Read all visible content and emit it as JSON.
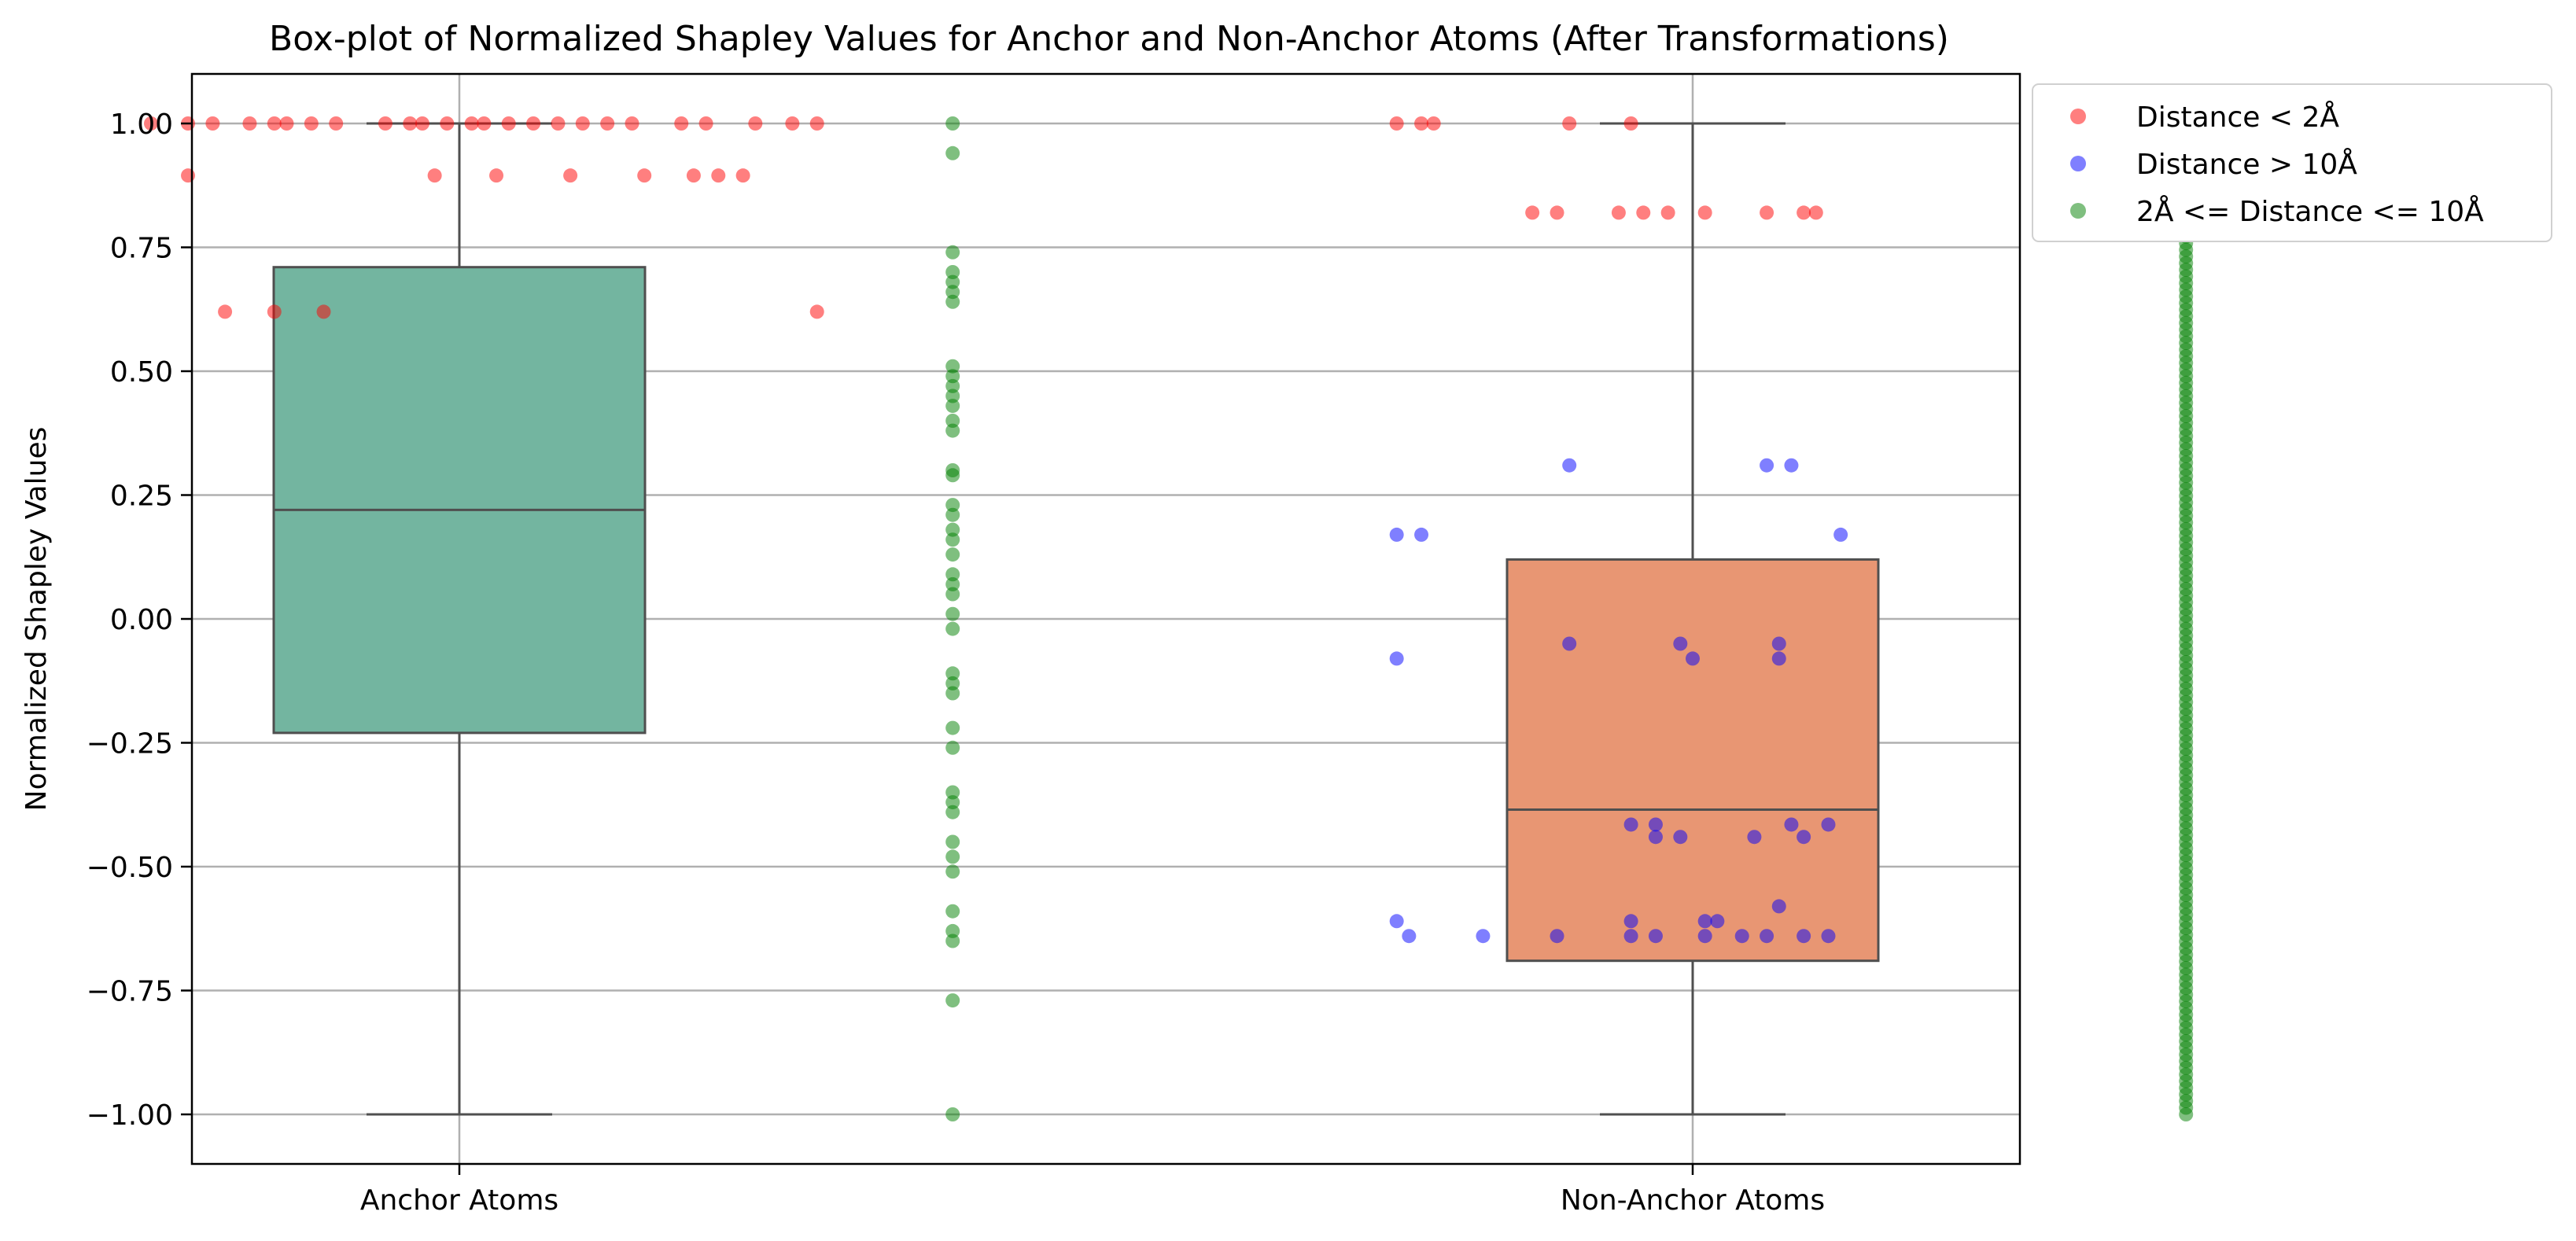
{
  "chart_data": {
    "type": "box",
    "title": "Box-plot of Normalized Shapley Values for Anchor and Non-Anchor Atoms (After Transformations)",
    "xlabel": "",
    "ylabel": "Normalized Shapley Values",
    "ylim": [
      -1.1,
      1.1
    ],
    "yticks": [
      1.0,
      0.75,
      0.5,
      0.25,
      0.0,
      -0.25,
      -0.5,
      -0.75,
      -1.0
    ],
    "ytick_labels": [
      "1.00",
      "0.75",
      "0.50",
      "0.25",
      "0.00",
      "−0.25",
      "−0.50",
      "−0.75",
      "−1.00"
    ],
    "categories": [
      "Anchor Atoms",
      "Non-Anchor Atoms"
    ],
    "grid": true,
    "legend_position": "outside-top-right",
    "boxes": [
      {
        "category": "Anchor Atoms",
        "whislo": -1.0,
        "q1": -0.23,
        "median": 0.22,
        "q3": 0.71,
        "whishi": 1.0,
        "color": "#73b5a0"
      },
      {
        "category": "Non-Anchor Atoms",
        "whislo": -1.0,
        "q1": -0.69,
        "median": -0.385,
        "q3": 0.12,
        "whishi": 1.0,
        "color": "#e89673"
      }
    ],
    "series": [
      {
        "name": "Distance < 2Å",
        "color": "#ff0000",
        "opacity": 0.5,
        "points": [
          {
            "cat": 0,
            "off": -0.25,
            "y": 1.0
          },
          {
            "cat": 0,
            "off": -0.22,
            "y": 1.0
          },
          {
            "cat": 0,
            "off": -0.2,
            "y": 1.0
          },
          {
            "cat": 0,
            "off": -0.17,
            "y": 1.0
          },
          {
            "cat": 0,
            "off": -0.15,
            "y": 1.0
          },
          {
            "cat": 0,
            "off": -0.14,
            "y": 1.0
          },
          {
            "cat": 0,
            "off": -0.12,
            "y": 1.0
          },
          {
            "cat": 0,
            "off": -0.1,
            "y": 1.0
          },
          {
            "cat": 0,
            "off": -0.06,
            "y": 1.0
          },
          {
            "cat": 0,
            "off": -0.04,
            "y": 1.0
          },
          {
            "cat": 0,
            "off": -0.03,
            "y": 1.0
          },
          {
            "cat": 0,
            "off": -0.01,
            "y": 1.0
          },
          {
            "cat": 0,
            "off": 0.01,
            "y": 1.0
          },
          {
            "cat": 0,
            "off": 0.02,
            "y": 1.0
          },
          {
            "cat": 0,
            "off": 0.04,
            "y": 1.0
          },
          {
            "cat": 0,
            "off": 0.06,
            "y": 1.0
          },
          {
            "cat": 0,
            "off": 0.08,
            "y": 1.0
          },
          {
            "cat": 0,
            "off": 0.1,
            "y": 1.0
          },
          {
            "cat": 0,
            "off": 0.12,
            "y": 1.0
          },
          {
            "cat": 0,
            "off": 0.14,
            "y": 1.0
          },
          {
            "cat": 0,
            "off": 0.18,
            "y": 1.0
          },
          {
            "cat": 0,
            "off": 0.2,
            "y": 1.0
          },
          {
            "cat": 0,
            "off": 0.24,
            "y": 1.0
          },
          {
            "cat": 0,
            "off": 0.27,
            "y": 1.0
          },
          {
            "cat": 0,
            "off": 0.29,
            "y": 1.0
          },
          {
            "cat": 0,
            "off": -0.22,
            "y": 0.895
          },
          {
            "cat": 0,
            "off": -0.02,
            "y": 0.895
          },
          {
            "cat": 0,
            "off": 0.03,
            "y": 0.895
          },
          {
            "cat": 0,
            "off": 0.09,
            "y": 0.895
          },
          {
            "cat": 0,
            "off": 0.15,
            "y": 0.895
          },
          {
            "cat": 0,
            "off": 0.19,
            "y": 0.895
          },
          {
            "cat": 0,
            "off": 0.21,
            "y": 0.895
          },
          {
            "cat": 0,
            "off": 0.23,
            "y": 0.895
          },
          {
            "cat": 0,
            "off": -0.19,
            "y": 0.62
          },
          {
            "cat": 0,
            "off": -0.15,
            "y": 0.62
          },
          {
            "cat": 0,
            "off": -0.11,
            "y": 0.62
          },
          {
            "cat": 0,
            "off": 0.29,
            "y": 0.62
          },
          {
            "cat": 1,
            "off": -0.24,
            "y": 1.0
          },
          {
            "cat": 1,
            "off": -0.22,
            "y": 1.0
          },
          {
            "cat": 1,
            "off": -0.21,
            "y": 1.0
          },
          {
            "cat": 1,
            "off": -0.1,
            "y": 1.0
          },
          {
            "cat": 1,
            "off": -0.05,
            "y": 1.0
          },
          {
            "cat": 1,
            "off": -0.13,
            "y": 0.82
          },
          {
            "cat": 1,
            "off": -0.11,
            "y": 0.82
          },
          {
            "cat": 1,
            "off": -0.06,
            "y": 0.82
          },
          {
            "cat": 1,
            "off": -0.04,
            "y": 0.82
          },
          {
            "cat": 1,
            "off": -0.02,
            "y": 0.82
          },
          {
            "cat": 1,
            "off": 0.01,
            "y": 0.82
          },
          {
            "cat": 1,
            "off": 0.06,
            "y": 0.82
          },
          {
            "cat": 1,
            "off": 0.09,
            "y": 0.82
          },
          {
            "cat": 1,
            "off": 0.1,
            "y": 0.82
          }
        ]
      },
      {
        "name": "Distance > 10Å",
        "color": "#0000ff",
        "opacity": 0.5,
        "points": [
          {
            "cat": 1,
            "off": -0.1,
            "y": 0.31
          },
          {
            "cat": 1,
            "off": 0.06,
            "y": 0.31
          },
          {
            "cat": 1,
            "off": 0.08,
            "y": 0.31
          },
          {
            "cat": 1,
            "off": -0.24,
            "y": 0.17
          },
          {
            "cat": 1,
            "off": -0.22,
            "y": 0.17
          },
          {
            "cat": 1,
            "off": 0.12,
            "y": 0.17
          },
          {
            "cat": 1,
            "off": -0.1,
            "y": -0.05
          },
          {
            "cat": 1,
            "off": -0.01,
            "y": -0.05
          },
          {
            "cat": 1,
            "off": 0.07,
            "y": -0.05
          },
          {
            "cat": 1,
            "off": -0.24,
            "y": -0.08
          },
          {
            "cat": 1,
            "off": 0.0,
            "y": -0.08
          },
          {
            "cat": 1,
            "off": 0.07,
            "y": -0.08
          },
          {
            "cat": 1,
            "off": -0.05,
            "y": -0.415
          },
          {
            "cat": 1,
            "off": -0.03,
            "y": -0.415
          },
          {
            "cat": 1,
            "off": 0.08,
            "y": -0.415
          },
          {
            "cat": 1,
            "off": 0.11,
            "y": -0.415
          },
          {
            "cat": 1,
            "off": -0.03,
            "y": -0.44
          },
          {
            "cat": 1,
            "off": -0.01,
            "y": -0.44
          },
          {
            "cat": 1,
            "off": 0.05,
            "y": -0.44
          },
          {
            "cat": 1,
            "off": 0.09,
            "y": -0.44
          },
          {
            "cat": 1,
            "off": -0.24,
            "y": -0.61
          },
          {
            "cat": 1,
            "off": -0.05,
            "y": -0.61
          },
          {
            "cat": 1,
            "off": 0.01,
            "y": -0.61
          },
          {
            "cat": 1,
            "off": 0.02,
            "y": -0.61
          },
          {
            "cat": 1,
            "off": 0.07,
            "y": -0.58
          },
          {
            "cat": 1,
            "off": -0.23,
            "y": -0.64
          },
          {
            "cat": 1,
            "off": -0.17,
            "y": -0.64
          },
          {
            "cat": 1,
            "off": -0.11,
            "y": -0.64
          },
          {
            "cat": 1,
            "off": -0.05,
            "y": -0.64
          },
          {
            "cat": 1,
            "off": -0.03,
            "y": -0.64
          },
          {
            "cat": 1,
            "off": 0.01,
            "y": -0.64
          },
          {
            "cat": 1,
            "off": 0.04,
            "y": -0.64
          },
          {
            "cat": 1,
            "off": 0.06,
            "y": -0.64
          },
          {
            "cat": 1,
            "off": 0.09,
            "y": -0.64
          },
          {
            "cat": 1,
            "off": 0.11,
            "y": -0.64
          }
        ]
      },
      {
        "name": "2Å <= Distance <= 10Å",
        "color": "#008000",
        "opacity": 0.5,
        "points": [
          {
            "cat": 0,
            "off": 0.4,
            "y": 1.0
          },
          {
            "cat": 0,
            "off": 0.4,
            "y": 0.94
          },
          {
            "cat": 0,
            "off": 0.4,
            "y": 0.74
          },
          {
            "cat": 0,
            "off": 0.4,
            "y": 0.7
          },
          {
            "cat": 0,
            "off": 0.4,
            "y": 0.68
          },
          {
            "cat": 0,
            "off": 0.4,
            "y": 0.66
          },
          {
            "cat": 0,
            "off": 0.4,
            "y": 0.64
          },
          {
            "cat": 0,
            "off": 0.4,
            "y": 0.51
          },
          {
            "cat": 0,
            "off": 0.4,
            "y": 0.49
          },
          {
            "cat": 0,
            "off": 0.4,
            "y": 0.47
          },
          {
            "cat": 0,
            "off": 0.4,
            "y": 0.45
          },
          {
            "cat": 0,
            "off": 0.4,
            "y": 0.43
          },
          {
            "cat": 0,
            "off": 0.4,
            "y": 0.4
          },
          {
            "cat": 0,
            "off": 0.4,
            "y": 0.38
          },
          {
            "cat": 0,
            "off": 0.4,
            "y": 0.3
          },
          {
            "cat": 0,
            "off": 0.4,
            "y": 0.29
          },
          {
            "cat": 0,
            "off": 0.4,
            "y": 0.23
          },
          {
            "cat": 0,
            "off": 0.4,
            "y": 0.21
          },
          {
            "cat": 0,
            "off": 0.4,
            "y": 0.18
          },
          {
            "cat": 0,
            "off": 0.4,
            "y": 0.16
          },
          {
            "cat": 0,
            "off": 0.4,
            "y": 0.13
          },
          {
            "cat": 0,
            "off": 0.4,
            "y": 0.09
          },
          {
            "cat": 0,
            "off": 0.4,
            "y": 0.07
          },
          {
            "cat": 0,
            "off": 0.4,
            "y": 0.05
          },
          {
            "cat": 0,
            "off": 0.4,
            "y": 0.01
          },
          {
            "cat": 0,
            "off": 0.4,
            "y": -0.02
          },
          {
            "cat": 0,
            "off": 0.4,
            "y": -0.11
          },
          {
            "cat": 0,
            "off": 0.4,
            "y": -0.13
          },
          {
            "cat": 0,
            "off": 0.4,
            "y": -0.15
          },
          {
            "cat": 0,
            "off": 0.4,
            "y": -0.22
          },
          {
            "cat": 0,
            "off": 0.4,
            "y": -0.26
          },
          {
            "cat": 0,
            "off": 0.4,
            "y": -0.35
          },
          {
            "cat": 0,
            "off": 0.4,
            "y": -0.37
          },
          {
            "cat": 0,
            "off": 0.4,
            "y": -0.39
          },
          {
            "cat": 0,
            "off": 0.4,
            "y": -0.45
          },
          {
            "cat": 0,
            "off": 0.4,
            "y": -0.48
          },
          {
            "cat": 0,
            "off": 0.4,
            "y": -0.51
          },
          {
            "cat": 0,
            "off": 0.4,
            "y": -0.59
          },
          {
            "cat": 0,
            "off": 0.4,
            "y": -0.63
          },
          {
            "cat": 0,
            "off": 0.4,
            "y": -0.65
          },
          {
            "cat": 0,
            "off": 0.4,
            "y": -0.77
          },
          {
            "cat": 0,
            "off": 0.4,
            "y": -1.0
          }
        ],
        "dense_strip": {
          "cat": 1,
          "off": 0.4,
          "y_from": -1.0,
          "y_to": 1.0,
          "count": 150
        }
      }
    ]
  }
}
